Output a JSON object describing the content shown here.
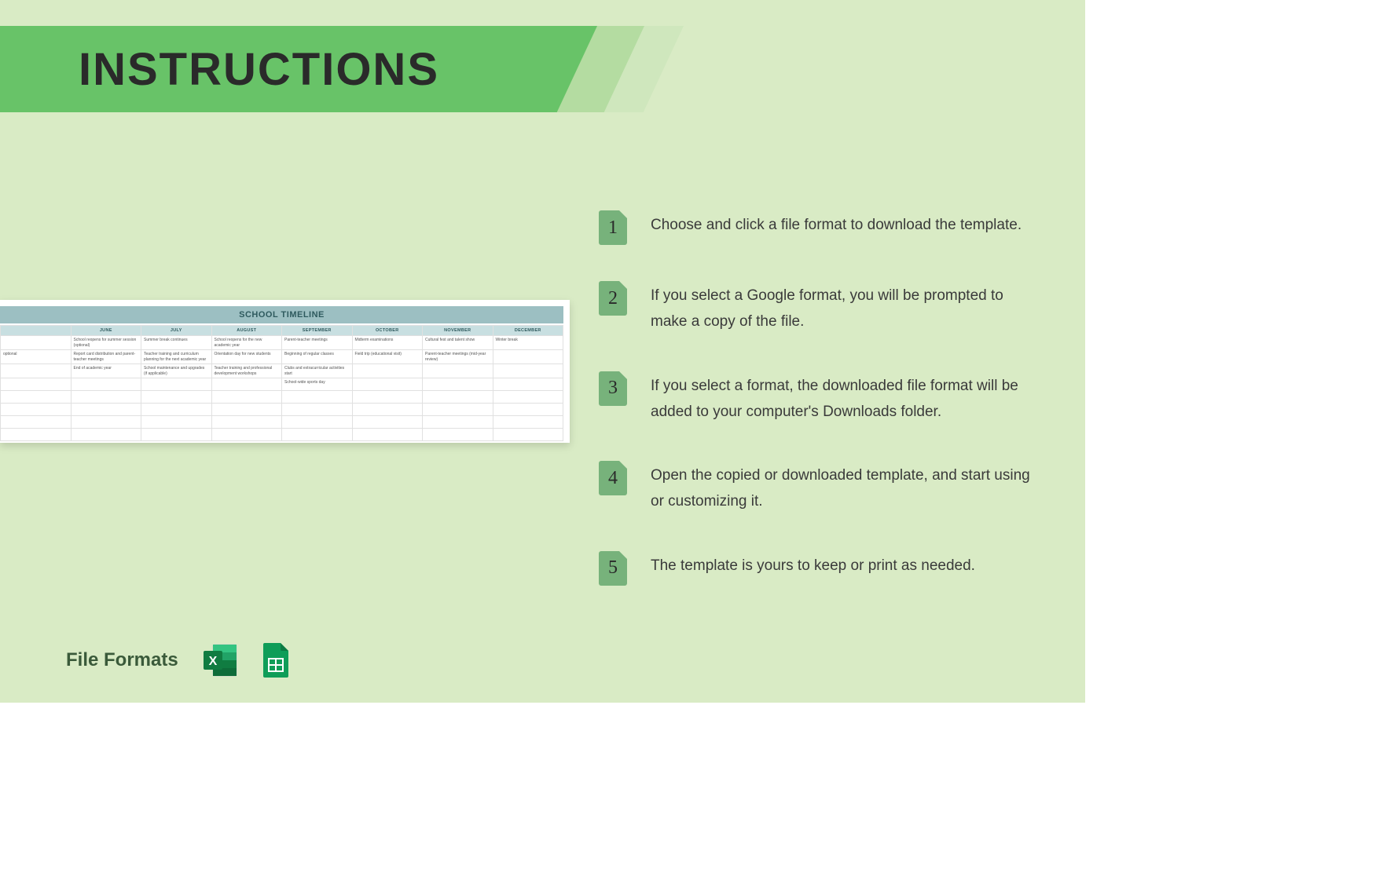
{
  "header": {
    "title": "INSTRUCTIONS",
    "banner_colors": [
      "#68c368",
      "#b4dca1",
      "#cfe7bd"
    ],
    "background_color": "#d9ebc5"
  },
  "steps": [
    {
      "num": "1",
      "text": "Choose and click a file format to download the template."
    },
    {
      "num": "2",
      "text": "If you select a Google format, you will be prompted to make a copy of the file."
    },
    {
      "num": "3",
      "text": "If you select a format, the downloaded file format will be added to your computer's Downloads folder."
    },
    {
      "num": "4",
      "text": "Open the copied or downloaded template, and start using or customizing it."
    },
    {
      "num": "5",
      "text": "The template is yours to keep or print as needed."
    }
  ],
  "preview": {
    "title": "SCHOOL TIMELINE",
    "title_bg": "#9cbfc2",
    "header_bg": "#c8dfe1",
    "columns": [
      "",
      "JUNE",
      "JULY",
      "AUGUST",
      "SEPTEMBER",
      "OCTOBER",
      "NOVEMBER",
      "DECEMBER"
    ],
    "rows": [
      [
        "",
        "School reopens for summer session (optional)",
        "Summer break continues",
        "School reopens for the new academic year",
        "Parent-teacher meetings",
        "Midterm examinations",
        "Cultural fest and talent show",
        "Winter break"
      ],
      [
        "optional",
        "Report card distribution and parent-teacher meetings",
        "Teacher training and curriculum planning for the next academic year",
        "Orientation day for new students",
        "Beginning of regular classes",
        "Field trip (educational visit)",
        "Parent-teacher meetings (mid-year review)",
        ""
      ],
      [
        "",
        "End of academic year",
        "School maintenance and upgrades (if applicable)",
        "Teacher training and professional development workshops",
        "Clubs and extracurricular activities start",
        "",
        "",
        ""
      ],
      [
        "",
        "",
        "",
        "",
        "School-wide sports day",
        "",
        "",
        ""
      ],
      [
        "",
        "",
        "",
        "",
        "",
        "",
        "",
        ""
      ],
      [
        "",
        "",
        "",
        "",
        "",
        "",
        "",
        ""
      ],
      [
        "",
        "",
        "",
        "",
        "",
        "",
        "",
        ""
      ],
      [
        "",
        "",
        "",
        "",
        "",
        "",
        "",
        ""
      ]
    ]
  },
  "file_formats": {
    "label": "File Formats",
    "formats": [
      {
        "name": "Excel",
        "color_dark": "#107c41",
        "color_mid": "#21a366",
        "color_light": "#33c481",
        "letter": "X"
      },
      {
        "name": "Google Sheets",
        "color_dark": "#0f9d58",
        "color_light": "#34a853",
        "fold": "#0c7a43"
      }
    ]
  }
}
